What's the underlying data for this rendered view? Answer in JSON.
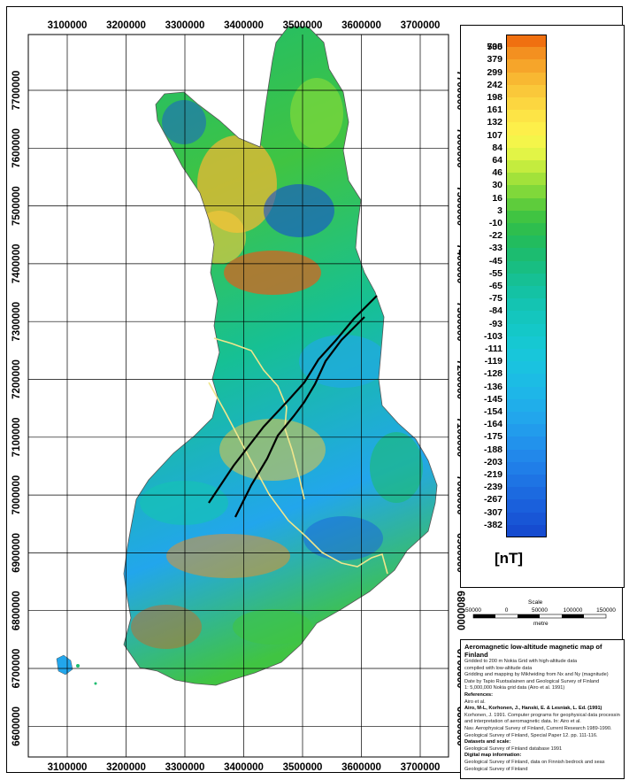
{
  "map": {
    "x_ticks": [
      "3100000",
      "3200000",
      "3300000",
      "3400000",
      "3500000",
      "3600000",
      "3700000"
    ],
    "y_ticks": [
      "7700000",
      "7600000",
      "7500000",
      "7400000",
      "7300000",
      "7200000",
      "7100000",
      "7000000",
      "6900000",
      "6800000",
      "6700000",
      "6600000"
    ],
    "features": {
      "profile_lines": "black-line",
      "highlighted_boundary": "yellow-line"
    },
    "north_arrow": "north-arrow",
    "scale": {
      "title": "Scale",
      "tick_labels": [
        "50000",
        "0",
        "50000",
        "100000",
        "150000"
      ],
      "unit": "metre"
    }
  },
  "legend": {
    "unit": "[nT]",
    "classes": [
      {
        "label": "735",
        "color": "#f07010"
      },
      {
        "label": "500",
        "color": "#f39020"
      },
      {
        "label": "379",
        "color": "#f6a52a"
      },
      {
        "label": "299",
        "color": "#f8b832"
      },
      {
        "label": "242",
        "color": "#fac83a"
      },
      {
        "label": "198",
        "color": "#fcd640"
      },
      {
        "label": "161",
        "color": "#fde446"
      },
      {
        "label": "132",
        "color": "#fdef4a"
      },
      {
        "label": "107",
        "color": "#f4f54a"
      },
      {
        "label": "84",
        "color": "#e2f446"
      },
      {
        "label": "64",
        "color": "#c4ec3e"
      },
      {
        "label": "46",
        "color": "#a2e23a"
      },
      {
        "label": "30",
        "color": "#80d83a"
      },
      {
        "label": "16",
        "color": "#5ecc3c"
      },
      {
        "label": "3",
        "color": "#40c442"
      },
      {
        "label": "-10",
        "color": "#2ebe4e"
      },
      {
        "label": "-22",
        "color": "#22bc5e"
      },
      {
        "label": "-33",
        "color": "#1cbc70"
      },
      {
        "label": "-45",
        "color": "#18be82"
      },
      {
        "label": "-55",
        "color": "#16c094"
      },
      {
        "label": "-65",
        "color": "#14c2a4"
      },
      {
        "label": "-75",
        "color": "#14c4b2"
      },
      {
        "label": "-84",
        "color": "#14c6be"
      },
      {
        "label": "-93",
        "color": "#14c8c8"
      },
      {
        "label": "-103",
        "color": "#16c8d2"
      },
      {
        "label": "-111",
        "color": "#18c6da"
      },
      {
        "label": "-119",
        "color": "#1ac2e0"
      },
      {
        "label": "-128",
        "color": "#1cbce4"
      },
      {
        "label": "-136",
        "color": "#1eb6e8"
      },
      {
        "label": "-145",
        "color": "#20aeea"
      },
      {
        "label": "-154",
        "color": "#22a6ec"
      },
      {
        "label": "-164",
        "color": "#229cec"
      },
      {
        "label": "-175",
        "color": "#2292ec"
      },
      {
        "label": "-188",
        "color": "#2288ea"
      },
      {
        "label": "-203",
        "color": "#207ee8"
      },
      {
        "label": "-219",
        "color": "#1e74e4"
      },
      {
        "label": "-239",
        "color": "#1c6ae0"
      },
      {
        "label": "-267",
        "color": "#1a60dc"
      },
      {
        "label": "-307",
        "color": "#1856d6"
      },
      {
        "label": "-382",
        "color": "#164cd0"
      }
    ]
  },
  "info": {
    "title": "Aeromagnetic low-altitude magnetic map of Finland",
    "lines": [
      {
        "text": "Gridded to 200 m Nokia Grid with high-altitude data",
        "head": false
      },
      {
        "text": "compiled with low-altitude data",
        "head": false
      },
      {
        "text": "Gridding and mapping by Mikheiding from Nx and Ny (magnitude)",
        "head": false
      },
      {
        "text": "Date by Tapio Ruotsalainen and Geological Survey of Finland",
        "head": false
      },
      {
        "text": "1: 5,000,000 Nokia grid data (Airo et al. 1991)",
        "head": false
      },
      {
        "text": "References:",
        "head": true
      },
      {
        "text": "Airo et al.",
        "head": false
      },
      {
        "text": "Airo, M-L, Korhonen, J., Hanski, E. & Lesniak, L. Ed. (1991)",
        "head": true
      },
      {
        "text": "Korhonen, J. 1991. Computer programs for geophysical data processing",
        "head": false
      },
      {
        "text": "and interpretation of aeromagnetic data. In: Airo et al.",
        "head": false
      },
      {
        "text": "Nav. Aerophysical Survey of Finland, Current Research 1989-1990.",
        "head": false
      },
      {
        "text": "Geological Survey of Finland, Special Paper 12. pp. 111-116.",
        "head": false
      },
      {
        "text": "Datasets and scale:",
        "head": true
      },
      {
        "text": "Geological Survey of Finland database 1991",
        "head": false
      },
      {
        "text": "Digital map information:",
        "head": true
      },
      {
        "text": "Geological Survey of Finland, data on Finnish bedrock and seas",
        "head": false
      },
      {
        "text": "Geological Survey of Finland",
        "head": false
      }
    ]
  }
}
